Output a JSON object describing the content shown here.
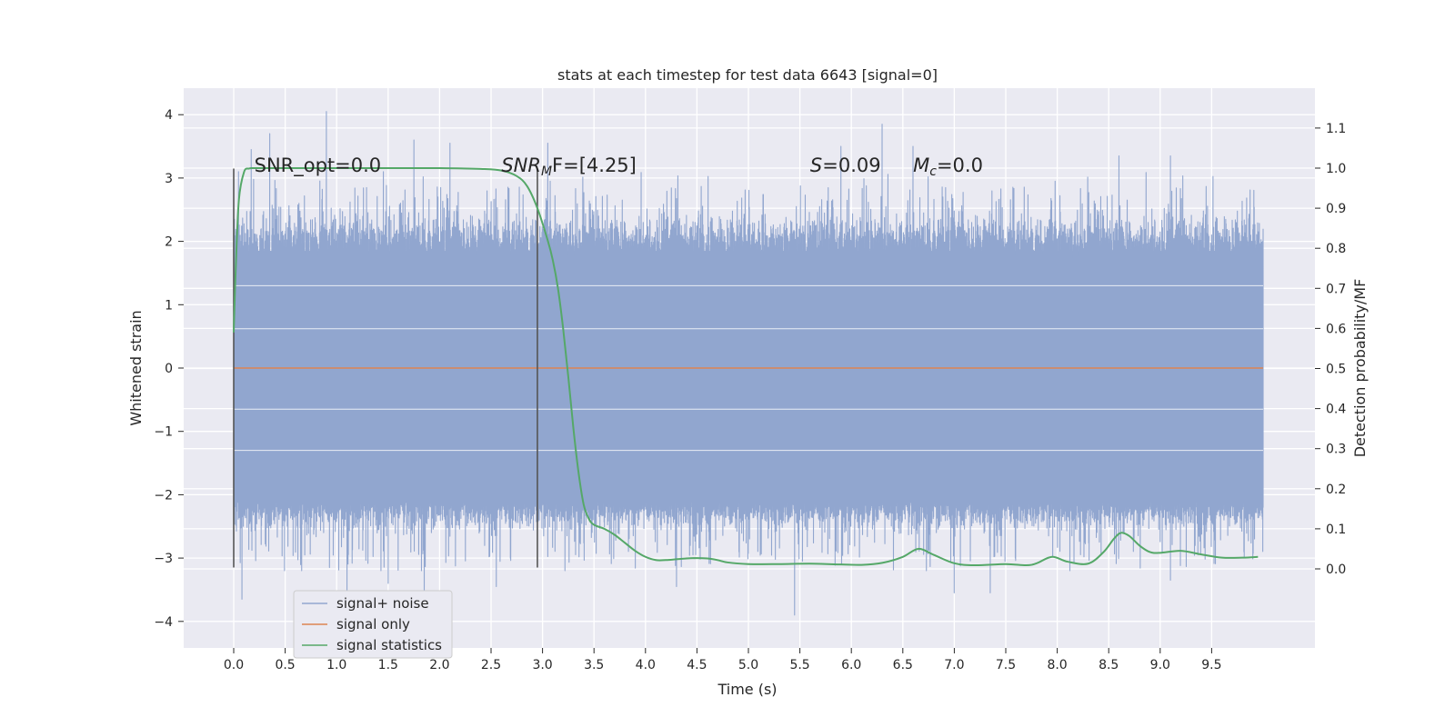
{
  "chart_data": {
    "type": "line",
    "title": "stats at each timestep for test data 6643 [signal=0]",
    "xlabel": "Time (s)",
    "ylabel_left": "Whitened strain",
    "ylabel_right": "Detection probability/MF",
    "xlim": [
      -0.43,
      10.56
    ],
    "ylim_left": [
      -4.4,
      4.4
    ],
    "ylim_right": [
      -0.2,
      1.2
    ],
    "grid": true,
    "background": "#eaeaf2",
    "x_ticks": [
      "0.0",
      "0.5",
      "1.0",
      "1.5",
      "2.0",
      "2.5",
      "3.0",
      "3.5",
      "4.0",
      "4.5",
      "5.0",
      "5.5",
      "6.0",
      "6.5",
      "7.0",
      "7.5",
      "8.0",
      "8.5",
      "9.0",
      "9.5"
    ],
    "y_ticks_left": [
      "−4",
      "−3",
      "−2",
      "−1",
      "0",
      "1",
      "2",
      "3",
      "4"
    ],
    "y_ticks_right": [
      "0.0",
      "0.1",
      "0.2",
      "0.3",
      "0.4",
      "0.5",
      "0.6",
      "0.7",
      "0.8",
      "0.9",
      "1.0",
      "1.1"
    ],
    "noise_envelope": {
      "x_range": [
        0.0,
        10.0
      ],
      "typical_high": 2.0,
      "typical_low": -2.1,
      "peaks_high": [
        [
          0.17,
          3.45
        ],
        [
          0.35,
          3.7
        ],
        [
          0.9,
          4.05
        ],
        [
          1.75,
          3.6
        ],
        [
          2.1,
          3.55
        ],
        [
          3.05,
          3.55
        ],
        [
          5.9,
          3.5
        ],
        [
          6.3,
          3.85
        ],
        [
          6.6,
          3.5
        ],
        [
          8.6,
          3.35
        ],
        [
          9.1,
          3.35
        ]
      ],
      "peaks_low": [
        [
          0.08,
          -3.65
        ],
        [
          1.1,
          -3.55
        ],
        [
          1.5,
          -3.4
        ],
        [
          1.85,
          -4.05
        ],
        [
          2.55,
          -3.45
        ],
        [
          4.3,
          -3.45
        ],
        [
          5.45,
          -3.9
        ],
        [
          7.0,
          -3.55
        ],
        [
          7.35,
          -3.55
        ],
        [
          9.1,
          -3.35
        ]
      ]
    },
    "series": [
      {
        "name": "signal+ noise",
        "color": "#91a6cf",
        "style": "dense-noise"
      },
      {
        "name": "signal only",
        "color": "#dd8452",
        "values_constant": 0.0
      },
      {
        "name": "signal statistics",
        "color": "#55a868",
        "axis": "right",
        "x": [
          0.0,
          0.02,
          0.05,
          0.1,
          0.15,
          0.2,
          0.3,
          0.5,
          1.0,
          1.5,
          2.0,
          2.4,
          2.6,
          2.75,
          2.85,
          2.95,
          3.05,
          3.1,
          3.15,
          3.2,
          3.25,
          3.3,
          3.35,
          3.4,
          3.45,
          3.5,
          3.6,
          3.7,
          3.8,
          3.9,
          4.0,
          4.1,
          4.2,
          4.3,
          4.4,
          4.5,
          4.6,
          4.7,
          4.8,
          5.0,
          5.3,
          5.6,
          5.9,
          6.1,
          6.3,
          6.5,
          6.65,
          6.8,
          7.0,
          7.2,
          7.5,
          7.7,
          7.8,
          7.95,
          8.1,
          8.3,
          8.45,
          8.55,
          8.62,
          8.7,
          8.8,
          8.9,
          9.0,
          9.2,
          9.4,
          9.6,
          9.8,
          9.95
        ],
        "values": [
          0.59,
          0.75,
          0.92,
          0.99,
          0.999,
          1.0,
          1.0,
          1.0,
          1.0,
          1.0,
          1.0,
          0.998,
          0.994,
          0.98,
          0.955,
          0.9,
          0.82,
          0.77,
          0.7,
          0.6,
          0.48,
          0.35,
          0.24,
          0.16,
          0.125,
          0.11,
          0.1,
          0.085,
          0.065,
          0.045,
          0.03,
          0.022,
          0.022,
          0.024,
          0.026,
          0.027,
          0.026,
          0.022,
          0.016,
          0.012,
          0.012,
          0.013,
          0.011,
          0.01,
          0.015,
          0.03,
          0.05,
          0.035,
          0.014,
          0.009,
          0.012,
          0.009,
          0.014,
          0.03,
          0.018,
          0.013,
          0.042,
          0.075,
          0.09,
          0.082,
          0.058,
          0.042,
          0.04,
          0.045,
          0.036,
          0.028,
          0.028,
          0.03
        ]
      }
    ],
    "vlines": [
      {
        "x": 0.0,
        "y_from": -3.15,
        "y_to": 3.15
      },
      {
        "x": 2.95,
        "y_from": -3.15,
        "y_to": 3.15
      }
    ],
    "annotations": [
      {
        "label": "SNR_opt=0.0",
        "x": 0.2,
        "y": 3.2
      },
      {
        "label": "SNR",
        "sub": "M",
        "after": "F=[4.25]",
        "italic": true,
        "x": 2.6,
        "y": 3.2
      },
      {
        "label": "S",
        "after": "=0.09",
        "italic": true,
        "x": 5.6,
        "y": 3.2
      },
      {
        "label": "M",
        "sub": "c",
        "after": "=0.0",
        "italic": true,
        "x": 6.6,
        "y": 3.2
      }
    ],
    "legend": {
      "position": "lower-left",
      "entries": [
        "signal+ noise",
        "signal only",
        "signal statistics"
      ]
    }
  }
}
